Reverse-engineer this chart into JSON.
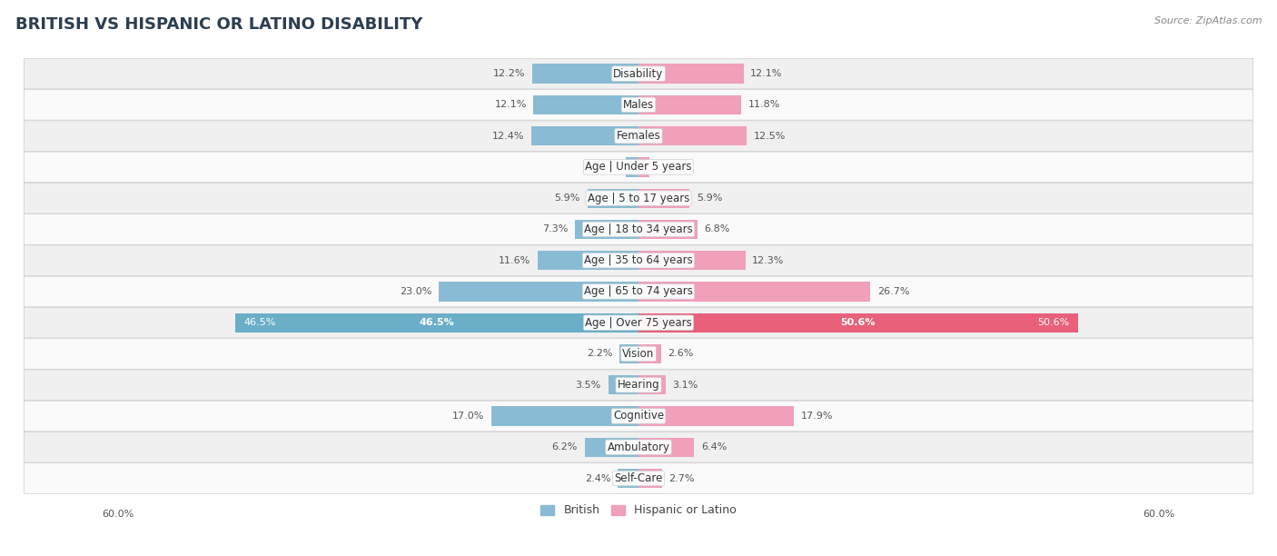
{
  "title": "BRITISH VS HISPANIC OR LATINO DISABILITY",
  "source": "Source: ZipAtlas.com",
  "categories": [
    "Disability",
    "Males",
    "Females",
    "Age | Under 5 years",
    "Age | 5 to 17 years",
    "Age | 18 to 34 years",
    "Age | 35 to 64 years",
    "Age | 65 to 74 years",
    "Age | Over 75 years",
    "Vision",
    "Hearing",
    "Cognitive",
    "Ambulatory",
    "Self-Care"
  ],
  "british": [
    12.2,
    12.1,
    12.4,
    1.5,
    5.9,
    7.3,
    11.6,
    23.0,
    46.5,
    2.2,
    3.5,
    17.0,
    6.2,
    2.4
  ],
  "hispanic": [
    12.1,
    11.8,
    12.5,
    1.3,
    5.9,
    6.8,
    12.3,
    26.7,
    50.6,
    2.6,
    3.1,
    17.9,
    6.4,
    2.7
  ],
  "british_color": "#89bcd4",
  "hispanic_color": "#f0a0b8",
  "over75_british_color": "#6aaec8",
  "over75_hispanic_color": "#e8607a",
  "british_label": "British",
  "hispanic_label": "Hispanic or Latino",
  "xlim": 60.0,
  "bg_color": "#ffffff",
  "row_even_color": "#f0f0f0",
  "row_odd_color": "#fafafa",
  "title_fontsize": 13,
  "label_fontsize": 8.5,
  "value_fontsize": 8,
  "legend_fontsize": 9,
  "axis_fontsize": 8
}
